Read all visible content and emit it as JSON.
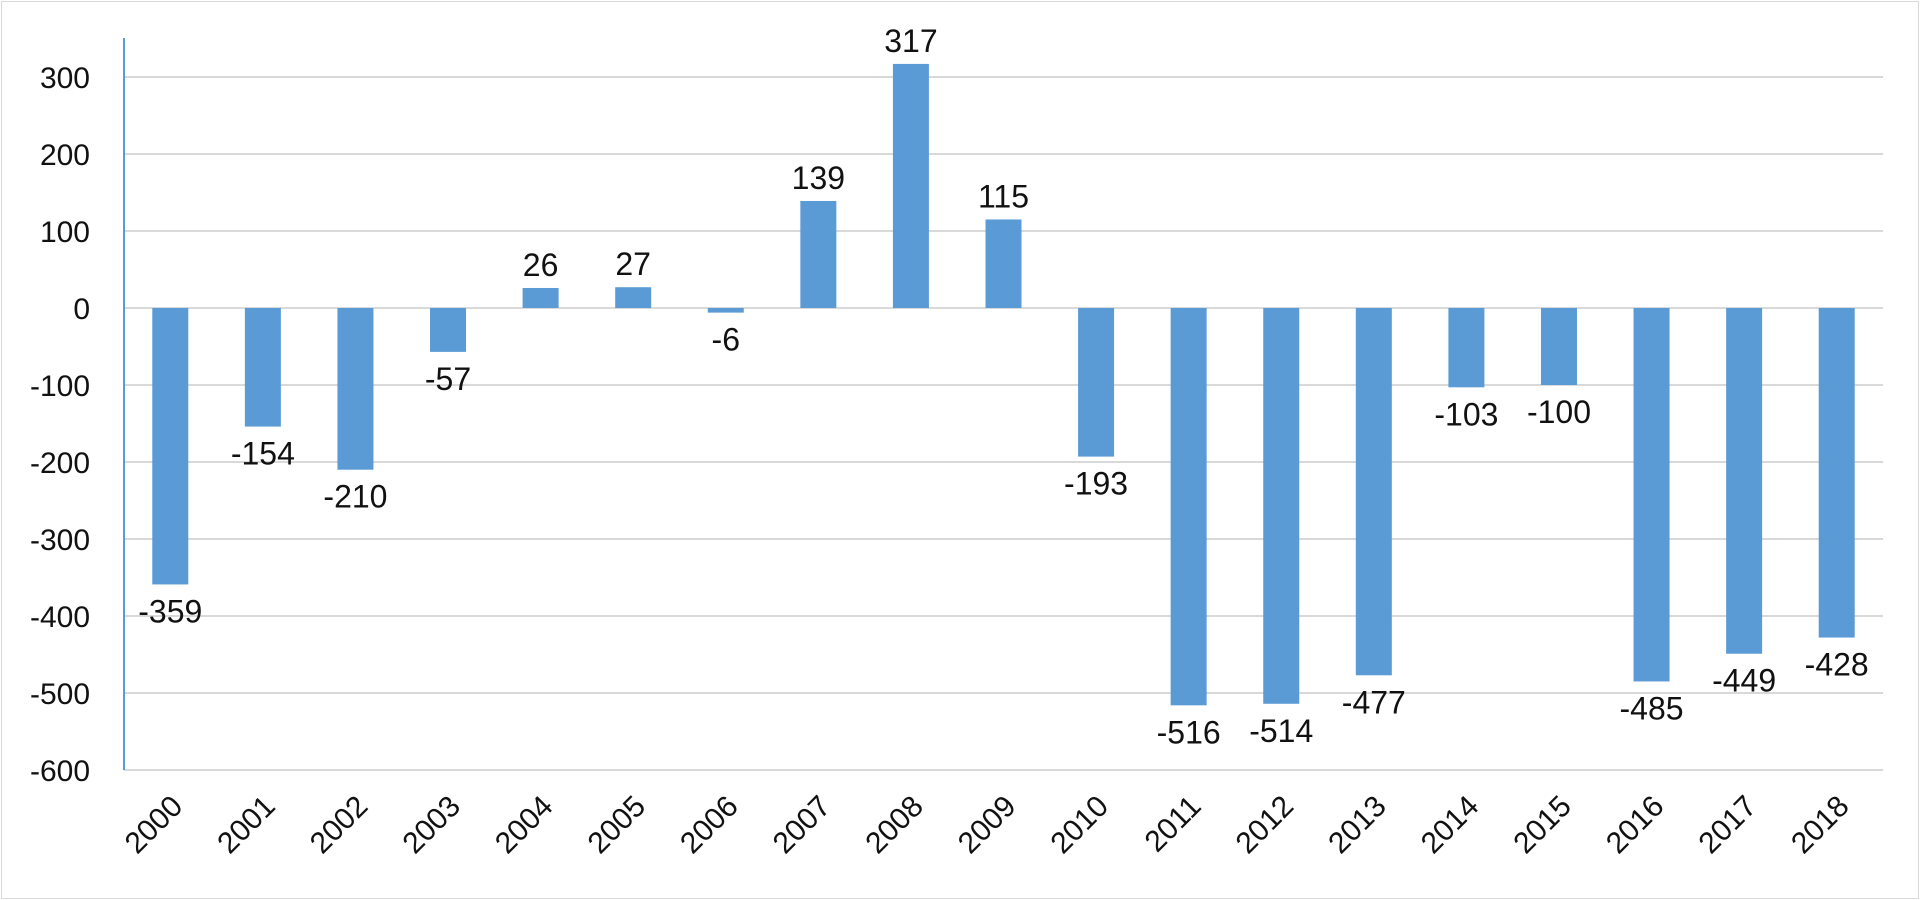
{
  "chart_data": {
    "type": "bar",
    "title": "",
    "xlabel": "",
    "ylabel": "",
    "categories": [
      "2000",
      "2001",
      "2002",
      "2003",
      "2004",
      "2005",
      "2006",
      "2007",
      "2008",
      "2009",
      "2010",
      "2011",
      "2012",
      "2013",
      "2014",
      "2015",
      "2016",
      "2017",
      "2018"
    ],
    "values": [
      -359,
      -154,
      -210,
      -57,
      26,
      27,
      -6,
      139,
      317,
      115,
      -193,
      -516,
      -514,
      -477,
      -103,
      -100,
      -485,
      -449,
      -428
    ],
    "ylim": [
      -600,
      350
    ],
    "yticks": [
      300,
      200,
      100,
      0,
      -100,
      -200,
      -300,
      -400,
      -500,
      -600
    ],
    "grid": true,
    "legend": "none",
    "bar_color": "#5b9bd5"
  }
}
